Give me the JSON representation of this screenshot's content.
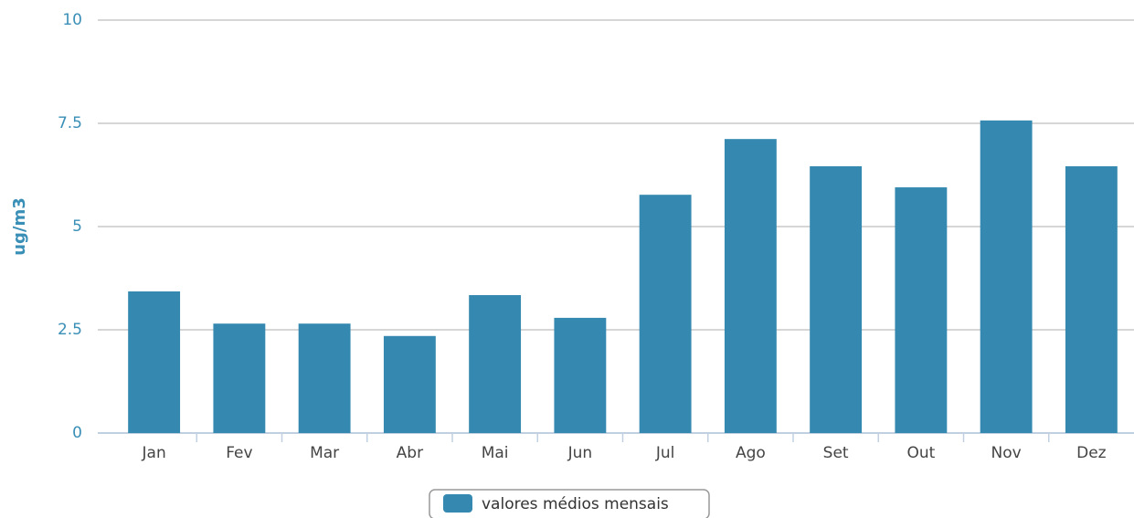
{
  "chart_data": {
    "type": "bar",
    "y_label": "ug/m3",
    "categories": [
      "Jan",
      "Fev",
      "Mar",
      "Abr",
      "Mai",
      "Jun",
      "Jul",
      "Ago",
      "Set",
      "Out",
      "Nov",
      "Dez"
    ],
    "series": [
      {
        "name": "valores médios mensais",
        "color": "#3589b0",
        "values": [
          3.43,
          2.65,
          2.65,
          2.35,
          3.34,
          2.79,
          5.77,
          7.12,
          6.46,
          5.95,
          7.57,
          6.46
        ]
      }
    ],
    "ylim": [
      0,
      10
    ],
    "yticks": [
      0,
      2.5,
      5,
      7.5,
      10
    ],
    "grid": true,
    "legend": "bottom"
  }
}
